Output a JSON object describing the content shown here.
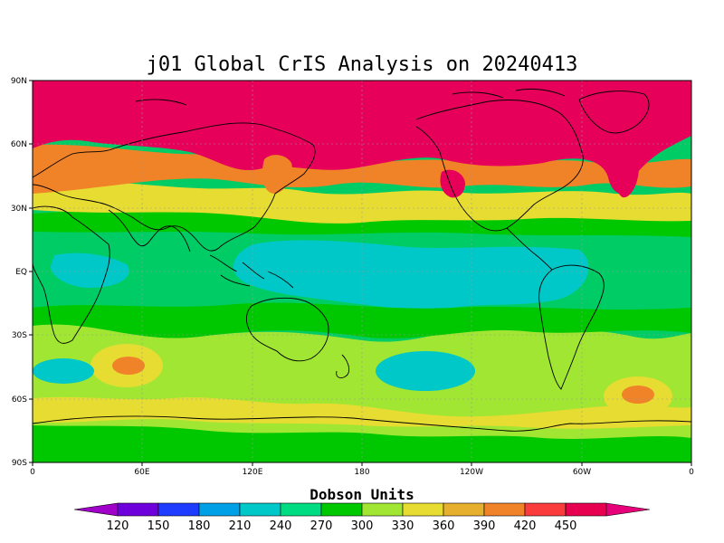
{
  "map": {
    "title": "j01 Global CrIS Analysis on 20240413",
    "projection": "equirectangular",
    "quantity": "total column ozone",
    "lat_ticks": [
      "90N",
      "60N",
      "30N",
      "EQ",
      "30S",
      "60S",
      "90S"
    ],
    "lon_ticks": [
      "0",
      "60E",
      "120E",
      "180",
      "120W",
      "60W",
      "0"
    ],
    "grid": true,
    "background_color": "#00cc66"
  },
  "colorbar": {
    "title": "Dobson Units",
    "labels": [
      "120",
      "150",
      "180",
      "210",
      "240",
      "270",
      "300",
      "330",
      "360",
      "390",
      "420",
      "450"
    ],
    "colors": [
      "#a000c8",
      "#6e00dc",
      "#1e3cff",
      "#00a0e6",
      "#00c8c8",
      "#00dc82",
      "#00c800",
      "#a0e632",
      "#e6dc32",
      "#e6af2d",
      "#f08228",
      "#fa3c3c",
      "#e6004f",
      "#e6007a"
    ],
    "extend": "both"
  },
  "fields": [
    {
      "name": "northern-high-ozone-band",
      "level": "450",
      "color": "#e6005a"
    },
    {
      "name": "northern-midlat-band",
      "level": "420",
      "color": "#f08228"
    },
    {
      "name": "subtropical-north-band",
      "level": "360",
      "color": "#e6dc32"
    },
    {
      "name": "tropical-band",
      "level": "270",
      "color": "#00dc82"
    },
    {
      "name": "pacific-low-ozone-region",
      "level": "240",
      "color": "#00c8c8"
    },
    {
      "name": "southern-midlat-band",
      "level": "330",
      "color": "#a0e632"
    },
    {
      "name": "antarctic-band",
      "level": "300",
      "color": "#00c800"
    }
  ]
}
